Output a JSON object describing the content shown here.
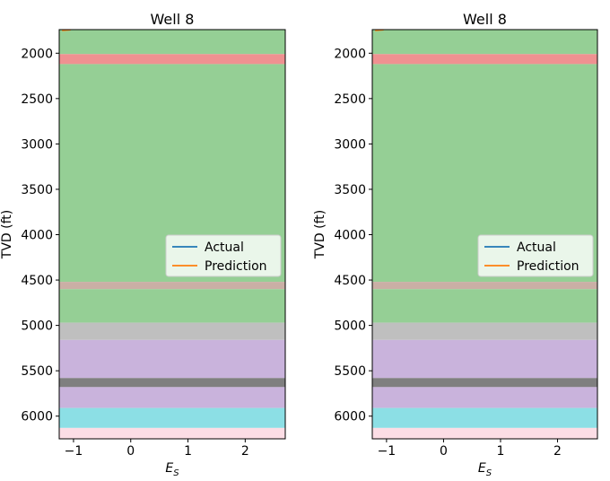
{
  "chart_data": [
    {
      "type": "line",
      "title": "Well 8",
      "xlabel": "E",
      "xlabel_sub": "S",
      "ylabel": "TVD (ft)",
      "xlim": [
        -1.25,
        2.7
      ],
      "ylim": [
        6250,
        1740
      ],
      "y_inverted": true,
      "xticks": [
        -1,
        0,
        1,
        2
      ],
      "xtick_labels": [
        "−1",
        "0",
        "1",
        "2"
      ],
      "yticks": [
        2000,
        2500,
        3000,
        3500,
        4000,
        4500,
        5000,
        5500,
        6000
      ],
      "ytick_labels": [
        "2000",
        "2500",
        "3000",
        "3500",
        "4000",
        "4500",
        "5000",
        "5500",
        "6000"
      ],
      "legend": {
        "position": "center-right",
        "entries": [
          {
            "label": "Actual",
            "color": "#1f77b4"
          },
          {
            "label": "Prediction",
            "color": "#ff7f0e"
          }
        ]
      },
      "bands": [
        {
          "from": 1740,
          "to": 2010,
          "color": "#95cf95"
        },
        {
          "from": 2010,
          "to": 2120,
          "color": "#ef9191"
        },
        {
          "from": 2120,
          "to": 4520,
          "color": "#95cf95"
        },
        {
          "from": 4520,
          "to": 4600,
          "color": "#caafa5"
        },
        {
          "from": 4600,
          "to": 4970,
          "color": "#95cf95"
        },
        {
          "from": 4970,
          "to": 5160,
          "color": "#bfbfbf"
        },
        {
          "from": 5160,
          "to": 5580,
          "color": "#c9b3dc"
        },
        {
          "from": 5580,
          "to": 5680,
          "color": "#7f7f7f"
        },
        {
          "from": 5680,
          "to": 5910,
          "color": "#c9b3dc"
        },
        {
          "from": 5910,
          "to": 6130,
          "color": "#8cdfe5"
        },
        {
          "from": 6130,
          "to": 6250,
          "color": "#fcdde5"
        }
      ],
      "series": [
        {
          "name": "Actual",
          "color": "#1f77b4",
          "x": [],
          "y": []
        },
        {
          "name": "Prediction",
          "color": "#ff7f0e",
          "x": [
            -1.2,
            -1.05
          ],
          "y": [
            1750,
            1742
          ]
        }
      ]
    },
    {
      "type": "line",
      "title": "Well 8",
      "xlabel": "E",
      "xlabel_sub": "S",
      "ylabel": "TVD (ft)",
      "xlim": [
        -1.25,
        2.7
      ],
      "ylim": [
        6250,
        1740
      ],
      "y_inverted": true,
      "xticks": [
        -1,
        0,
        1,
        2
      ],
      "xtick_labels": [
        "−1",
        "0",
        "1",
        "2"
      ],
      "yticks": [
        2000,
        2500,
        3000,
        3500,
        4000,
        4500,
        5000,
        5500,
        6000
      ],
      "ytick_labels": [
        "2000",
        "2500",
        "3000",
        "3500",
        "4000",
        "4500",
        "5000",
        "5500",
        "6000"
      ],
      "legend": {
        "position": "center-right",
        "entries": [
          {
            "label": "Actual",
            "color": "#1f77b4"
          },
          {
            "label": "Prediction",
            "color": "#ff7f0e"
          }
        ]
      },
      "bands": [
        {
          "from": 1740,
          "to": 2010,
          "color": "#95cf95"
        },
        {
          "from": 2010,
          "to": 2120,
          "color": "#ef9191"
        },
        {
          "from": 2120,
          "to": 4520,
          "color": "#95cf95"
        },
        {
          "from": 4520,
          "to": 4600,
          "color": "#caafa5"
        },
        {
          "from": 4600,
          "to": 4970,
          "color": "#95cf95"
        },
        {
          "from": 4970,
          "to": 5160,
          "color": "#bfbfbf"
        },
        {
          "from": 5160,
          "to": 5580,
          "color": "#c9b3dc"
        },
        {
          "from": 5580,
          "to": 5680,
          "color": "#7f7f7f"
        },
        {
          "from": 5680,
          "to": 5910,
          "color": "#c9b3dc"
        },
        {
          "from": 5910,
          "to": 6130,
          "color": "#8cdfe5"
        },
        {
          "from": 6130,
          "to": 6250,
          "color": "#fcdde5"
        }
      ],
      "series": [
        {
          "name": "Actual",
          "color": "#1f77b4",
          "x": [],
          "y": []
        },
        {
          "name": "Prediction",
          "color": "#ff7f0e",
          "x": [
            -1.2,
            -1.05
          ],
          "y": [
            1750,
            1742
          ]
        }
      ]
    }
  ]
}
